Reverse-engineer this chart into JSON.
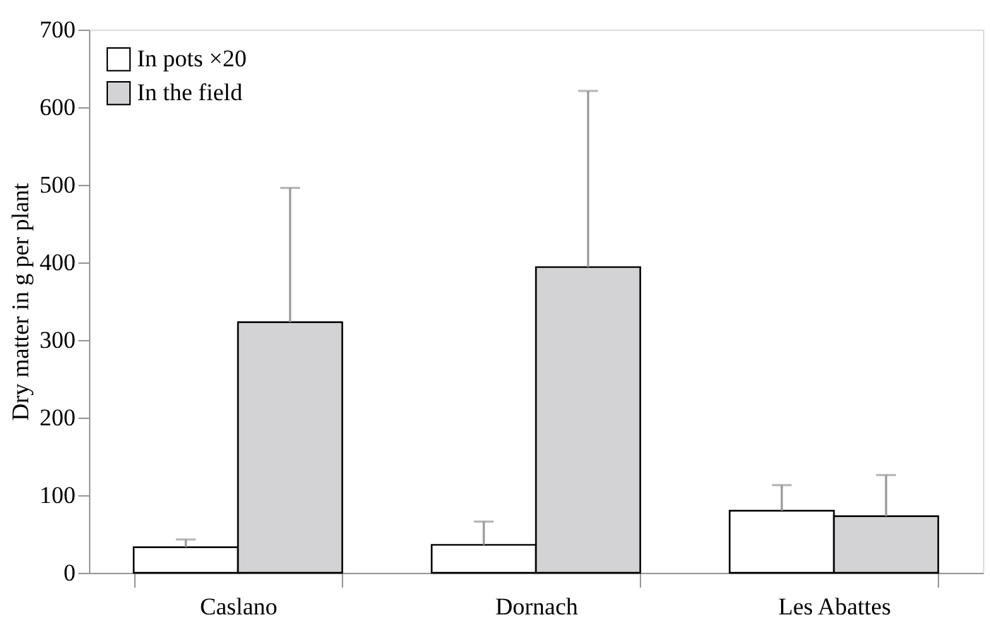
{
  "chart_data": {
    "type": "bar",
    "ylabel": "Dry matter in g per plant",
    "categories": [
      "Caslano",
      "Dornach",
      "Les Abattes"
    ],
    "series": [
      {
        "name": "In pots ×20",
        "color": "#ffffff",
        "values": [
          33,
          36,
          80
        ],
        "errors": [
          [
            33,
            43
          ],
          [
            36,
            66
          ],
          [
            80,
            113
          ]
        ]
      },
      {
        "name": "In the field",
        "color": "#d3d3d5",
        "values": [
          323,
          394,
          73
        ],
        "errors": [
          [
            323,
            496
          ],
          [
            394,
            621
          ],
          [
            73,
            126
          ]
        ]
      }
    ],
    "ylim": [
      0,
      700
    ],
    "yticks": [
      0,
      100,
      200,
      300,
      400,
      500,
      600,
      700
    ],
    "grid": false,
    "legend": "top left"
  }
}
